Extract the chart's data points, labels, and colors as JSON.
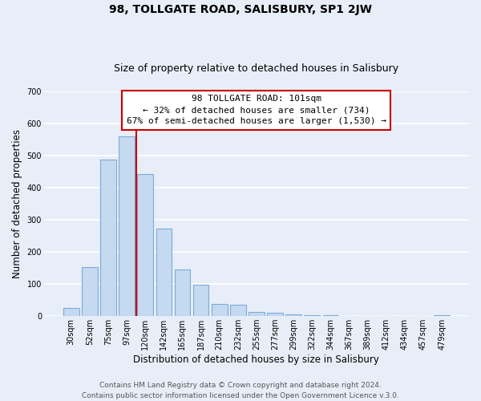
{
  "title": "98, TOLLGATE ROAD, SALISBURY, SP1 2JW",
  "subtitle": "Size of property relative to detached houses in Salisbury",
  "xlabel": "Distribution of detached houses by size in Salisbury",
  "ylabel": "Number of detached properties",
  "bar_labels": [
    "30sqm",
    "52sqm",
    "75sqm",
    "97sqm",
    "120sqm",
    "142sqm",
    "165sqm",
    "187sqm",
    "210sqm",
    "232sqm",
    "255sqm",
    "277sqm",
    "299sqm",
    "322sqm",
    "344sqm",
    "367sqm",
    "389sqm",
    "412sqm",
    "434sqm",
    "457sqm",
    "479sqm"
  ],
  "bar_values": [
    25,
    152,
    487,
    560,
    443,
    273,
    146,
    98,
    37,
    35,
    13,
    10,
    5,
    3,
    2,
    1,
    0,
    0,
    0,
    0,
    2
  ],
  "bar_color": "#c5d9f0",
  "bar_edge_color": "#7aacda",
  "vline_x": 3.5,
  "vline_color": "#cc0000",
  "annotation_title": "98 TOLLGATE ROAD: 101sqm",
  "annotation_line1": "← 32% of detached houses are smaller (734)",
  "annotation_line2": "67% of semi-detached houses are larger (1,530) →",
  "annotation_box_color": "#ffffff",
  "annotation_box_edge": "#cc0000",
  "ylim": [
    0,
    700
  ],
  "yticks": [
    0,
    100,
    200,
    300,
    400,
    500,
    600,
    700
  ],
  "footer1": "Contains HM Land Registry data © Crown copyright and database right 2024.",
  "footer2": "Contains public sector information licensed under the Open Government Licence v.3.0.",
  "background_color": "#e8eef8",
  "plot_bg_color": "#e8eef8",
  "grid_color": "#ffffff",
  "title_fontsize": 10,
  "subtitle_fontsize": 9,
  "axis_label_fontsize": 8.5,
  "tick_fontsize": 7,
  "annotation_fontsize": 8,
  "footer_fontsize": 6.5
}
